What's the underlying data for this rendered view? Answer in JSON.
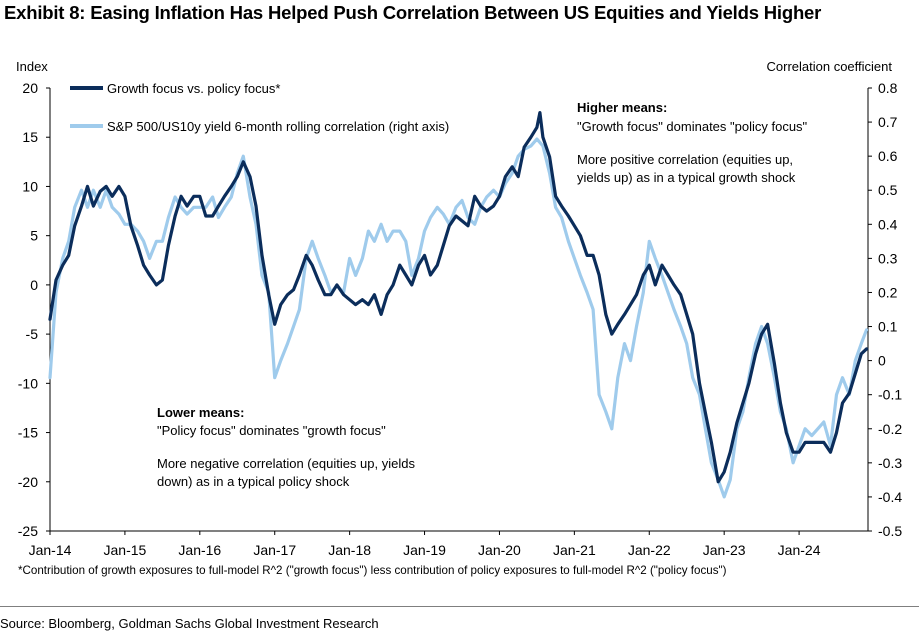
{
  "title": "Exhibit 8: Easing Inflation Has Helped Push Correlation Between US Equities and Yields Higher",
  "footnote": "*Contribution of growth exposures to full-model R^2 (\"growth focus\") less contribution of policy exposures to full-model R^2 (\"policy focus\")",
  "source": "Source: Bloomberg, Goldman Sachs Global Investment Research",
  "colors": {
    "growth": "#0b2d5b",
    "correlation": "#9fcbec"
  },
  "chart_data": {
    "type": "line",
    "y_left": {
      "label": "Index",
      "range": [
        -25,
        20
      ],
      "ticks": [
        "20",
        "15",
        "10",
        "5",
        "0",
        "-5",
        "-10",
        "-15",
        "-20",
        "-25"
      ]
    },
    "y_right": {
      "label": "Correlation coefficient",
      "range": [
        -0.5,
        0.8
      ],
      "ticks": [
        "0.8",
        "0.7",
        "0.6",
        "0.5",
        "0.4",
        "0.3",
        "0.2",
        "0.1",
        "0",
        "-0.1",
        "-0.2",
        "-0.3",
        "-0.4",
        "-0.5"
      ]
    },
    "x_range": [
      2014.0,
      2024.92
    ],
    "x_ticks": [
      {
        "label": "Jan-14",
        "x": 2014
      },
      {
        "label": "Jan-15",
        "x": 2015
      },
      {
        "label": "Jan-16",
        "x": 2016
      },
      {
        "label": "Jan-17",
        "x": 2017
      },
      {
        "label": "Jan-18",
        "x": 2018
      },
      {
        "label": "Jan-19",
        "x": 2019
      },
      {
        "label": "Jan-20",
        "x": 2020
      },
      {
        "label": "Jan-21",
        "x": 2021
      },
      {
        "label": "Jan-22",
        "x": 2022
      },
      {
        "label": "Jan-23",
        "x": 2023
      },
      {
        "label": "Jan-24",
        "x": 2024
      }
    ],
    "legend": [
      "Growth focus vs. policy focus*",
      "S&P 500/US10y yield 6-month rolling correlation (right axis)"
    ],
    "annotations": {
      "higher_title": "Higher means:",
      "higher_line1": "\"Growth focus\" dominates \"policy focus\"",
      "higher_line2": "More positive correlation (equities up,",
      "higher_line3": "yields up) as in a typical growth shock",
      "lower_title": "Lower means:",
      "lower_line1": "\"Policy focus\" dominates \"growth focus\"",
      "lower_line2": "More negative correlation (equities up, yields",
      "lower_line3": "down) as in a typical policy shock"
    },
    "series": [
      {
        "name": "Growth focus vs. policy focus*",
        "axis": "left",
        "points": [
          [
            2014.0,
            -3.5
          ],
          [
            2014.08,
            0.5
          ],
          [
            2014.17,
            2
          ],
          [
            2014.25,
            3
          ],
          [
            2014.33,
            6
          ],
          [
            2014.42,
            8
          ],
          [
            2014.5,
            10
          ],
          [
            2014.58,
            8
          ],
          [
            2014.67,
            9.5
          ],
          [
            2014.75,
            10
          ],
          [
            2014.83,
            9
          ],
          [
            2014.92,
            10
          ],
          [
            2015.0,
            9
          ],
          [
            2015.08,
            6
          ],
          [
            2015.17,
            4
          ],
          [
            2015.25,
            2
          ],
          [
            2015.33,
            1
          ],
          [
            2015.42,
            0
          ],
          [
            2015.5,
            0.5
          ],
          [
            2015.58,
            4
          ],
          [
            2015.67,
            7
          ],
          [
            2015.75,
            9
          ],
          [
            2015.83,
            8
          ],
          [
            2015.92,
            9
          ],
          [
            2016.0,
            9
          ],
          [
            2016.08,
            7
          ],
          [
            2016.17,
            7
          ],
          [
            2016.25,
            8
          ],
          [
            2016.33,
            9
          ],
          [
            2016.42,
            10
          ],
          [
            2016.5,
            11
          ],
          [
            2016.58,
            12.5
          ],
          [
            2016.67,
            11
          ],
          [
            2016.75,
            8
          ],
          [
            2016.83,
            3
          ],
          [
            2016.92,
            -1
          ],
          [
            2017.0,
            -4
          ],
          [
            2017.08,
            -2
          ],
          [
            2017.17,
            -1
          ],
          [
            2017.25,
            -0.5
          ],
          [
            2017.33,
            1
          ],
          [
            2017.42,
            3
          ],
          [
            2017.5,
            2
          ],
          [
            2017.58,
            0.5
          ],
          [
            2017.67,
            -1
          ],
          [
            2017.75,
            -1
          ],
          [
            2017.83,
            0
          ],
          [
            2017.92,
            -1
          ],
          [
            2018.0,
            -1.5
          ],
          [
            2018.08,
            -2
          ],
          [
            2018.17,
            -1.5
          ],
          [
            2018.25,
            -2
          ],
          [
            2018.33,
            -1
          ],
          [
            2018.42,
            -3
          ],
          [
            2018.5,
            -1
          ],
          [
            2018.58,
            0
          ],
          [
            2018.67,
            2
          ],
          [
            2018.75,
            1
          ],
          [
            2018.83,
            0
          ],
          [
            2018.92,
            2
          ],
          [
            2019.0,
            3
          ],
          [
            2019.08,
            1
          ],
          [
            2019.17,
            2
          ],
          [
            2019.25,
            4
          ],
          [
            2019.33,
            6
          ],
          [
            2019.42,
            7
          ],
          [
            2019.5,
            6.5
          ],
          [
            2019.58,
            6
          ],
          [
            2019.67,
            9
          ],
          [
            2019.75,
            8
          ],
          [
            2019.83,
            7.5
          ],
          [
            2019.92,
            8
          ],
          [
            2020.0,
            9
          ],
          [
            2020.08,
            11
          ],
          [
            2020.17,
            12
          ],
          [
            2020.25,
            11
          ],
          [
            2020.33,
            14
          ],
          [
            2020.42,
            15
          ],
          [
            2020.5,
            16
          ],
          [
            2020.54,
            17.5
          ],
          [
            2020.58,
            15
          ],
          [
            2020.67,
            13
          ],
          [
            2020.75,
            9
          ],
          [
            2020.83,
            8
          ],
          [
            2020.92,
            7
          ],
          [
            2021.0,
            6
          ],
          [
            2021.08,
            5
          ],
          [
            2021.17,
            3
          ],
          [
            2021.25,
            3
          ],
          [
            2021.33,
            1
          ],
          [
            2021.42,
            -3
          ],
          [
            2021.5,
            -5
          ],
          [
            2021.58,
            -4
          ],
          [
            2021.67,
            -3
          ],
          [
            2021.75,
            -2
          ],
          [
            2021.83,
            -1
          ],
          [
            2021.92,
            1
          ],
          [
            2022.0,
            2
          ],
          [
            2022.08,
            0
          ],
          [
            2022.17,
            2
          ],
          [
            2022.25,
            1
          ],
          [
            2022.33,
            0
          ],
          [
            2022.42,
            -1
          ],
          [
            2022.5,
            -3
          ],
          [
            2022.58,
            -5
          ],
          [
            2022.67,
            -10
          ],
          [
            2022.75,
            -13
          ],
          [
            2022.83,
            -16
          ],
          [
            2022.92,
            -20
          ],
          [
            2023.0,
            -19
          ],
          [
            2023.08,
            -17
          ],
          [
            2023.17,
            -14
          ],
          [
            2023.25,
            -12
          ],
          [
            2023.33,
            -10
          ],
          [
            2023.42,
            -7
          ],
          [
            2023.5,
            -5
          ],
          [
            2023.58,
            -4
          ],
          [
            2023.67,
            -8
          ],
          [
            2023.75,
            -12
          ],
          [
            2023.83,
            -15
          ],
          [
            2023.92,
            -17
          ],
          [
            2024.0,
            -17
          ],
          [
            2024.08,
            -16
          ],
          [
            2024.17,
            -16
          ],
          [
            2024.25,
            -16
          ],
          [
            2024.33,
            -16
          ],
          [
            2024.42,
            -17
          ],
          [
            2024.5,
            -15
          ],
          [
            2024.58,
            -12
          ],
          [
            2024.67,
            -11
          ],
          [
            2024.75,
            -9
          ],
          [
            2024.83,
            -7
          ],
          [
            2024.9,
            -6.5
          ]
        ]
      },
      {
        "name": "S&P 500/US10y yield 6-month rolling correlation (right axis)",
        "axis": "right",
        "points": [
          [
            2014.0,
            -0.05
          ],
          [
            2014.08,
            0.2
          ],
          [
            2014.17,
            0.3
          ],
          [
            2014.25,
            0.35
          ],
          [
            2014.33,
            0.45
          ],
          [
            2014.42,
            0.5
          ],
          [
            2014.5,
            0.45
          ],
          [
            2014.58,
            0.5
          ],
          [
            2014.67,
            0.45
          ],
          [
            2014.75,
            0.5
          ],
          [
            2014.83,
            0.45
          ],
          [
            2014.92,
            0.43
          ],
          [
            2015.0,
            0.4
          ],
          [
            2015.08,
            0.4
          ],
          [
            2015.17,
            0.38
          ],
          [
            2015.25,
            0.35
          ],
          [
            2015.33,
            0.3
          ],
          [
            2015.42,
            0.35
          ],
          [
            2015.5,
            0.35
          ],
          [
            2015.58,
            0.42
          ],
          [
            2015.67,
            0.48
          ],
          [
            2015.75,
            0.45
          ],
          [
            2015.83,
            0.43
          ],
          [
            2015.92,
            0.45
          ],
          [
            2016.0,
            0.45
          ],
          [
            2016.08,
            0.45
          ],
          [
            2016.17,
            0.48
          ],
          [
            2016.25,
            0.42
          ],
          [
            2016.33,
            0.45
          ],
          [
            2016.42,
            0.48
          ],
          [
            2016.5,
            0.55
          ],
          [
            2016.58,
            0.6
          ],
          [
            2016.67,
            0.48
          ],
          [
            2016.75,
            0.4
          ],
          [
            2016.83,
            0.25
          ],
          [
            2016.92,
            0.2
          ],
          [
            2017.0,
            -0.05
          ],
          [
            2017.08,
            0.0
          ],
          [
            2017.17,
            0.05
          ],
          [
            2017.25,
            0.1
          ],
          [
            2017.33,
            0.15
          ],
          [
            2017.42,
            0.3
          ],
          [
            2017.5,
            0.35
          ],
          [
            2017.58,
            0.3
          ],
          [
            2017.67,
            0.25
          ],
          [
            2017.75,
            0.2
          ],
          [
            2017.83,
            0.22
          ],
          [
            2017.92,
            0.2
          ],
          [
            2018.0,
            0.3
          ],
          [
            2018.08,
            0.25
          ],
          [
            2018.17,
            0.3
          ],
          [
            2018.25,
            0.38
          ],
          [
            2018.33,
            0.35
          ],
          [
            2018.42,
            0.4
          ],
          [
            2018.5,
            0.35
          ],
          [
            2018.58,
            0.38
          ],
          [
            2018.67,
            0.38
          ],
          [
            2018.75,
            0.35
          ],
          [
            2018.83,
            0.25
          ],
          [
            2018.92,
            0.3
          ],
          [
            2019.0,
            0.38
          ],
          [
            2019.08,
            0.42
          ],
          [
            2019.17,
            0.45
          ],
          [
            2019.25,
            0.43
          ],
          [
            2019.33,
            0.4
          ],
          [
            2019.42,
            0.45
          ],
          [
            2019.5,
            0.47
          ],
          [
            2019.58,
            0.42
          ],
          [
            2019.67,
            0.4
          ],
          [
            2019.75,
            0.45
          ],
          [
            2019.83,
            0.48
          ],
          [
            2019.92,
            0.5
          ],
          [
            2020.0,
            0.48
          ],
          [
            2020.08,
            0.52
          ],
          [
            2020.17,
            0.55
          ],
          [
            2020.25,
            0.6
          ],
          [
            2020.33,
            0.62
          ],
          [
            2020.42,
            0.63
          ],
          [
            2020.5,
            0.65
          ],
          [
            2020.58,
            0.63
          ],
          [
            2020.67,
            0.55
          ],
          [
            2020.75,
            0.45
          ],
          [
            2020.83,
            0.42
          ],
          [
            2020.92,
            0.35
          ],
          [
            2021.0,
            0.3
          ],
          [
            2021.08,
            0.25
          ],
          [
            2021.17,
            0.2
          ],
          [
            2021.25,
            0.15
          ],
          [
            2021.33,
            -0.1
          ],
          [
            2021.42,
            -0.15
          ],
          [
            2021.5,
            -0.2
          ],
          [
            2021.58,
            -0.05
          ],
          [
            2021.67,
            0.05
          ],
          [
            2021.75,
            0.0
          ],
          [
            2021.83,
            0.1
          ],
          [
            2021.92,
            0.2
          ],
          [
            2022.0,
            0.35
          ],
          [
            2022.08,
            0.3
          ],
          [
            2022.17,
            0.25
          ],
          [
            2022.25,
            0.2
          ],
          [
            2022.33,
            0.15
          ],
          [
            2022.42,
            0.1
          ],
          [
            2022.5,
            0.05
          ],
          [
            2022.58,
            -0.05
          ],
          [
            2022.67,
            -0.1
          ],
          [
            2022.75,
            -0.2
          ],
          [
            2022.83,
            -0.3
          ],
          [
            2022.92,
            -0.35
          ],
          [
            2023.0,
            -0.4
          ],
          [
            2023.08,
            -0.35
          ],
          [
            2023.17,
            -0.2
          ],
          [
            2023.25,
            -0.15
          ],
          [
            2023.33,
            -0.05
          ],
          [
            2023.42,
            0.05
          ],
          [
            2023.5,
            0.1
          ],
          [
            2023.58,
            0.05
          ],
          [
            2023.67,
            -0.05
          ],
          [
            2023.75,
            -0.15
          ],
          [
            2023.83,
            -0.2
          ],
          [
            2023.92,
            -0.3
          ],
          [
            2024.0,
            -0.25
          ],
          [
            2024.08,
            -0.2
          ],
          [
            2024.17,
            -0.22
          ],
          [
            2024.25,
            -0.2
          ],
          [
            2024.33,
            -0.18
          ],
          [
            2024.42,
            -0.25
          ],
          [
            2024.5,
            -0.1
          ],
          [
            2024.58,
            -0.05
          ],
          [
            2024.67,
            -0.1
          ],
          [
            2024.75,
            0.0
          ],
          [
            2024.83,
            0.05
          ],
          [
            2024.9,
            0.09
          ]
        ]
      }
    ]
  }
}
